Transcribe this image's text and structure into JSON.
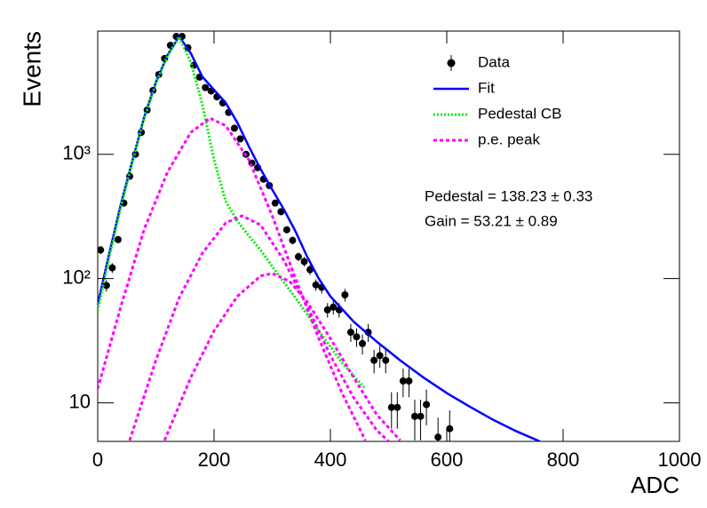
{
  "chart_data": {
    "type": "scatter",
    "log_y": true,
    "xlabel": "ADC",
    "ylabel": "Events",
    "xlim": [
      0,
      1000
    ],
    "xticks": [
      0,
      200,
      400,
      600,
      800,
      1000
    ],
    "ylim": [
      4.9,
      9800
    ],
    "yticks": [
      10,
      {
        "value": 100,
        "label": "10²"
      },
      {
        "value": 1000,
        "label": "10³"
      }
    ],
    "annotations": [
      "Pedestal = 138.23 ± 0.33",
      "Gain = 53.21 ± 0.89"
    ],
    "legend": "top-right",
    "series": [
      {
        "name": "Data",
        "type": "scatter",
        "color": "#000000",
        "x": [
          5,
          15,
          25,
          35,
          45,
          55,
          65,
          75,
          85,
          95,
          105,
          115,
          125,
          135,
          145,
          155,
          165,
          175,
          185,
          195,
          205,
          215,
          225,
          235,
          245,
          255,
          265,
          275,
          285,
          295,
          305,
          315,
          325,
          335,
          345,
          355,
          365,
          375,
          385,
          395,
          405,
          415,
          425,
          435,
          445,
          455,
          465,
          475,
          485,
          495,
          505,
          515,
          525,
          535,
          545,
          555,
          565,
          585,
          605
        ],
        "values": [
          170,
          88,
          122,
          206,
          405,
          665,
          1000,
          1500,
          2270,
          3260,
          4380,
          5900,
          7530,
          8870,
          8870,
          7200,
          5200,
          4170,
          3440,
          3230,
          2900,
          2590,
          2170,
          1620,
          1330,
          1000,
          850,
          780,
          630,
          560,
          405,
          345,
          247,
          203,
          150,
          137,
          118,
          89,
          85,
          56,
          59,
          56,
          74,
          37,
          34,
          30,
          37,
          22,
          24,
          22,
          9.2,
          9.2,
          15,
          15,
          7.8,
          7.8,
          9.7,
          5.3,
          6.2
        ],
        "yerr": [
          13,
          9.4,
          11,
          14,
          20,
          26,
          32,
          39,
          48,
          57,
          66,
          77,
          87,
          94,
          94,
          85,
          72,
          65,
          59,
          57,
          54,
          51,
          47,
          40,
          36,
          32,
          29,
          28,
          25,
          24,
          20,
          19,
          16,
          14,
          12,
          12,
          11,
          9.4,
          9.2,
          7.5,
          7.7,
          7.5,
          8.6,
          6.1,
          5.8,
          5.5,
          6.1,
          4.7,
          4.9,
          4.7,
          3,
          3,
          3.9,
          3.9,
          2.8,
          2.8,
          3.1,
          2.3,
          2.5
        ]
      },
      {
        "name": "Fit",
        "type": "line",
        "style": "solid",
        "color": "#0000ff",
        "x": [
          0,
          20,
          40,
          60,
          80,
          100,
          120,
          140,
          160,
          180,
          200,
          220,
          240,
          260,
          280,
          300,
          320,
          340,
          360,
          380,
          400,
          440,
          480,
          520,
          560,
          600,
          640,
          680,
          720,
          760
        ],
        "values": [
          62,
          160,
          400,
          900,
          2000,
          3800,
          6300,
          8900,
          6500,
          4200,
          3300,
          2600,
          1800,
          1150,
          760,
          520,
          360,
          240,
          150,
          100,
          72,
          45,
          31,
          22,
          16,
          12,
          9.3,
          7.3,
          5.9,
          4.9
        ]
      },
      {
        "name": "Pedestal CB",
        "type": "line",
        "style": "dotted",
        "color": "#00ee00",
        "x": [
          0,
          20,
          40,
          60,
          80,
          100,
          120,
          140,
          160,
          180,
          200,
          220,
          240,
          260,
          280,
          300,
          340,
          380,
          420,
          460
        ],
        "values": [
          55,
          150,
          380,
          880,
          1950,
          3700,
          6200,
          8800,
          5500,
          2500,
          900,
          420,
          290,
          220,
          170,
          125,
          70,
          38,
          21,
          13
        ]
      },
      {
        "name": "p.e. peak",
        "type": "line",
        "style": "dashed",
        "color": "#ff00ff",
        "x": [
          0,
          40,
          80,
          120,
          160,
          193,
          220,
          260,
          300,
          340,
          380,
          420,
          460,
          null,
          55,
          100,
          140,
          180,
          220,
          248,
          280,
          320,
          360,
          400,
          440,
          480,
          500,
          null,
          115,
          160,
          200,
          240,
          280,
          300,
          330,
          360,
          400,
          440,
          480,
          520
        ],
        "values": [
          13,
          60,
          250,
          720,
          1500,
          1950,
          1700,
          900,
          320,
          100,
          33,
          12,
          5,
          null,
          5,
          22,
          70,
          160,
          280,
          320,
          270,
          140,
          60,
          24,
          11,
          6,
          4.9,
          null,
          5,
          16,
          38,
          72,
          105,
          110,
          95,
          65,
          33,
          16,
          8,
          5
        ]
      }
    ]
  }
}
